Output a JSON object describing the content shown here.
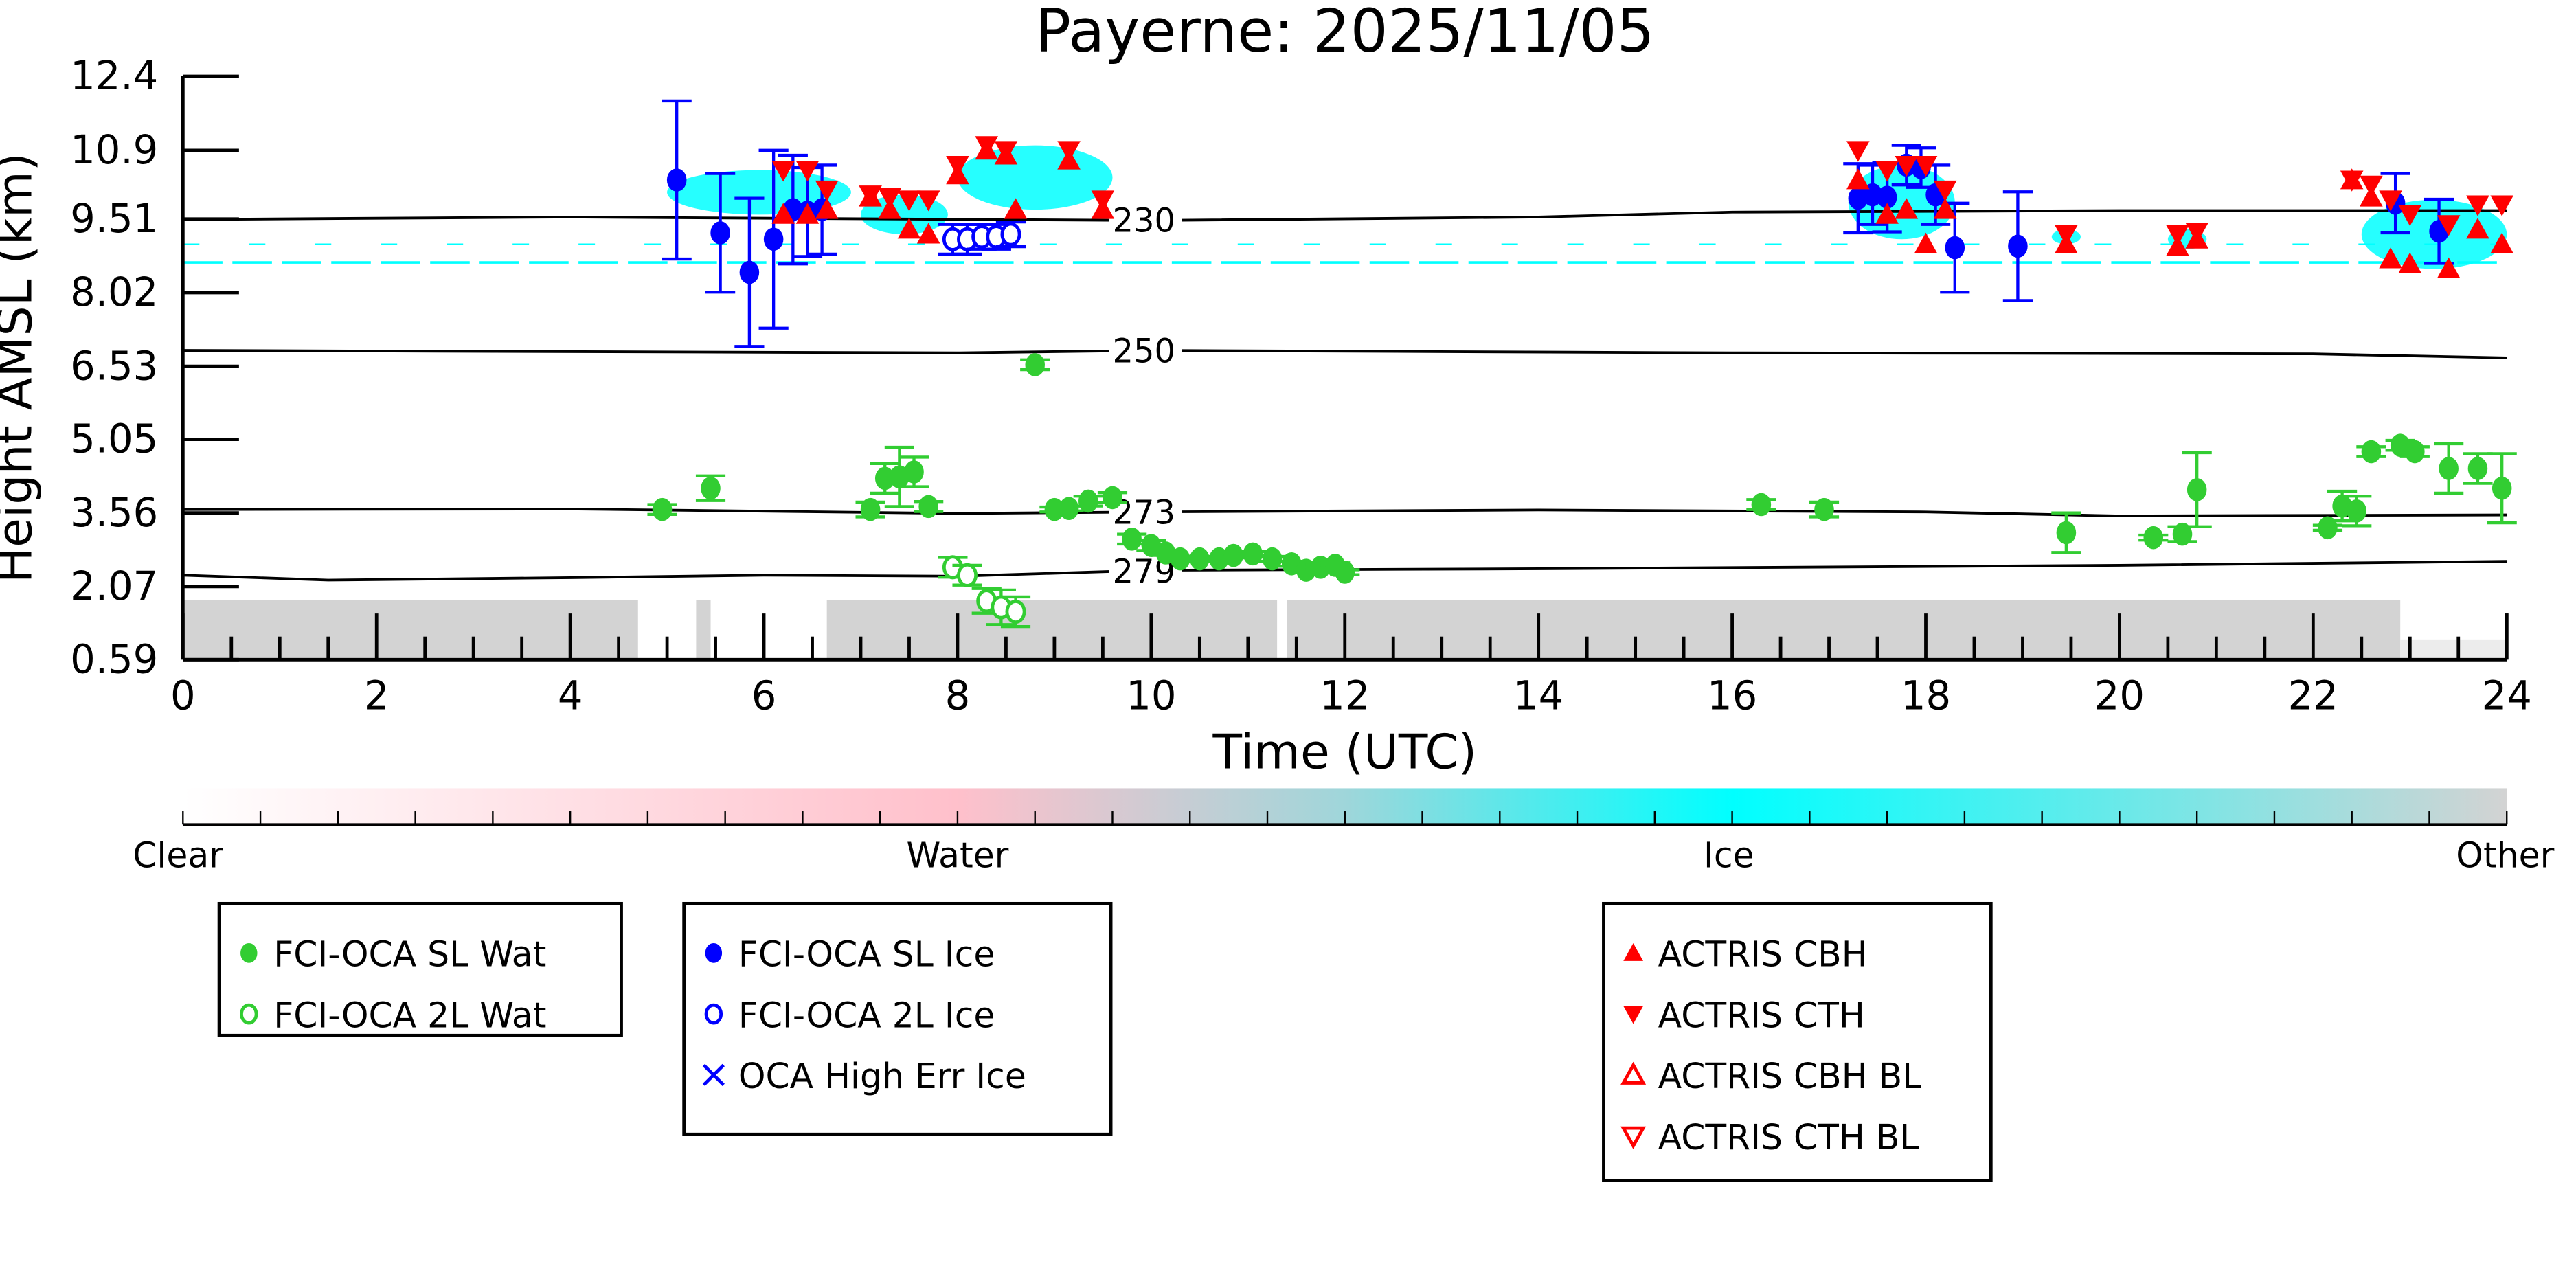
{
  "chart_data": {
    "type": "scatter",
    "title": "Payerne: 2025/11/05",
    "xlabel": "Time (UTC)",
    "ylabel": "Height AMSL (km)",
    "xlim": [
      0,
      24
    ],
    "ylim": [
      0.59,
      12.4
    ],
    "xticks": [
      0,
      2,
      4,
      6,
      8,
      10,
      12,
      14,
      16,
      18,
      20,
      22,
      24
    ],
    "yticks": [
      "0.59",
      "2.07",
      "3.56",
      "5.05",
      "6.53",
      "8.02",
      "9.51",
      "10.9",
      "12.4"
    ],
    "colorbar": {
      "labels": [
        "Clear",
        "Water",
        "Ice",
        "Other"
      ],
      "colors": [
        "#ffffff",
        "#ffc0cb",
        "#00ffff",
        "#d3d3d3"
      ]
    },
    "isotherms": [
      {
        "label": "230",
        "label_time": 9.6,
        "points": [
          [
            0,
            9.5
          ],
          [
            4,
            9.55
          ],
          [
            10,
            9.48
          ],
          [
            14,
            9.55
          ],
          [
            16,
            9.65
          ],
          [
            20,
            9.68
          ],
          [
            24,
            9.68
          ]
        ]
      },
      {
        "label": "250",
        "label_time": 9.6,
        "points": [
          [
            0,
            6.85
          ],
          [
            8,
            6.8
          ],
          [
            10,
            6.85
          ],
          [
            16,
            6.8
          ],
          [
            22,
            6.78
          ],
          [
            24,
            6.7
          ]
        ]
      },
      {
        "label": "273",
        "label_time": 9.6,
        "points": [
          [
            0,
            3.63
          ],
          [
            4,
            3.64
          ],
          [
            8,
            3.55
          ],
          [
            10,
            3.58
          ],
          [
            14,
            3.62
          ],
          [
            18,
            3.58
          ],
          [
            20,
            3.5
          ],
          [
            24,
            3.52
          ]
        ]
      },
      {
        "label": "279",
        "label_time": 9.6,
        "points": [
          [
            0,
            2.3
          ],
          [
            1.5,
            2.2
          ],
          [
            4,
            2.25
          ],
          [
            6,
            2.3
          ],
          [
            8,
            2.28
          ],
          [
            10,
            2.4
          ],
          [
            14,
            2.43
          ],
          [
            20,
            2.5
          ],
          [
            24,
            2.58
          ]
        ]
      }
    ],
    "series": [
      {
        "name": "FCI-OCA SL Wat",
        "marker": "filled-circle",
        "color": "#32cd32",
        "points": [
          [
            4.95,
            3.63,
            0.1
          ],
          [
            5.45,
            4.06,
            0.25
          ],
          [
            7.1,
            3.63,
            0.15
          ],
          [
            7.25,
            4.26,
            0.3
          ],
          [
            7.4,
            4.29,
            0.6
          ],
          [
            7.55,
            4.39,
            0.3
          ],
          [
            7.7,
            3.69,
            0.1
          ],
          [
            8.8,
            6.56,
            0.1
          ],
          [
            9.0,
            3.63,
            0.05
          ],
          [
            9.15,
            3.65,
            0.05
          ],
          [
            9.35,
            3.8,
            0.1
          ],
          [
            9.6,
            3.87,
            0.1
          ],
          [
            9.8,
            3.03,
            0.1
          ],
          [
            10.0,
            2.9,
            0.1
          ],
          [
            10.15,
            2.75,
            0.05
          ],
          [
            10.3,
            2.63,
            0.05
          ],
          [
            10.5,
            2.63,
            0.05
          ],
          [
            10.7,
            2.63,
            0.05
          ],
          [
            10.85,
            2.7,
            0.05
          ],
          [
            11.05,
            2.73,
            0.05
          ],
          [
            11.25,
            2.63,
            0.05
          ],
          [
            11.45,
            2.53,
            0.05
          ],
          [
            11.6,
            2.4,
            0.05
          ],
          [
            11.75,
            2.46,
            0.05
          ],
          [
            11.9,
            2.5,
            0.05
          ],
          [
            12.0,
            2.36,
            0.05
          ],
          [
            16.3,
            3.73,
            0.1
          ],
          [
            16.95,
            3.63,
            0.15
          ],
          [
            19.45,
            3.16,
            0.4
          ],
          [
            20.35,
            3.06,
            0.05
          ],
          [
            20.65,
            3.13,
            0.15
          ],
          [
            20.8,
            4.03,
            0.75
          ],
          [
            22.15,
            3.26,
            0.05
          ],
          [
            22.3,
            3.7,
            0.3
          ],
          [
            22.45,
            3.6,
            0.3
          ],
          [
            22.6,
            4.8,
            0.1
          ],
          [
            22.9,
            4.93,
            0.1
          ],
          [
            23.05,
            4.8,
            0.1
          ],
          [
            23.4,
            4.46,
            0.5
          ],
          [
            23.7,
            4.46,
            0.3
          ],
          [
            23.95,
            4.06,
            0.7
          ]
        ]
      },
      {
        "name": "FCI-OCA 2L Wat",
        "marker": "open-circle",
        "color": "#32cd32",
        "points": [
          [
            7.95,
            2.46,
            0.2
          ],
          [
            8.1,
            2.3,
            0.2
          ],
          [
            8.3,
            1.78,
            0.25
          ],
          [
            8.45,
            1.65,
            0.35
          ],
          [
            8.6,
            1.56,
            0.3
          ]
        ]
      },
      {
        "name": "FCI-OCA SL Ice",
        "marker": "filled-circle",
        "color": "#0000ff",
        "points": [
          [
            5.1,
            10.3,
            1.6
          ],
          [
            5.55,
            9.23,
            1.2
          ],
          [
            5.85,
            8.43,
            1.5
          ],
          [
            6.1,
            9.1,
            1.8
          ],
          [
            6.3,
            9.7,
            1.1
          ],
          [
            6.45,
            9.65,
            0.9
          ],
          [
            6.6,
            9.7,
            0.9
          ],
          [
            17.3,
            9.93,
            0.7
          ],
          [
            17.45,
            10.0,
            0.6
          ],
          [
            17.6,
            9.95,
            0.7
          ],
          [
            17.8,
            10.6,
            0.4
          ],
          [
            17.95,
            10.55,
            0.4
          ],
          [
            18.1,
            10.0,
            0.6
          ],
          [
            18.3,
            8.93,
            0.9
          ],
          [
            18.95,
            8.96,
            1.1
          ],
          [
            22.85,
            9.83,
            0.6
          ],
          [
            23.3,
            9.26,
            0.65
          ]
        ]
      },
      {
        "name": "FCI-OCA 2L Ice",
        "marker": "open-circle",
        "color": "#0000ff",
        "points": [
          [
            7.95,
            9.1,
            0.3
          ],
          [
            8.1,
            9.1,
            0.3
          ],
          [
            8.25,
            9.15,
            0.25
          ],
          [
            8.4,
            9.15,
            0.25
          ],
          [
            8.55,
            9.2,
            0.25
          ]
        ]
      },
      {
        "name": "OCA High Err Ice",
        "marker": "x",
        "color": "#0000ff",
        "points": []
      },
      {
        "name": "ACTRIS CBH",
        "marker": "triangle-up",
        "color": "#ff0000",
        "points": [
          [
            6.2,
            9.6
          ],
          [
            6.45,
            9.6
          ],
          [
            6.65,
            9.7
          ],
          [
            7.1,
            9.95
          ],
          [
            7.3,
            9.7
          ],
          [
            7.5,
            9.3
          ],
          [
            7.7,
            9.2
          ],
          [
            8.0,
            10.4
          ],
          [
            8.3,
            10.9
          ],
          [
            8.5,
            10.8
          ],
          [
            8.6,
            9.7
          ],
          [
            9.15,
            10.7
          ],
          [
            9.5,
            9.7
          ],
          [
            17.3,
            10.3
          ],
          [
            17.6,
            9.6
          ],
          [
            17.8,
            9.7
          ],
          [
            18.0,
            9.0
          ],
          [
            18.2,
            9.7
          ],
          [
            19.45,
            9.0
          ],
          [
            20.6,
            8.95
          ],
          [
            20.8,
            9.1
          ],
          [
            22.4,
            10.3
          ],
          [
            22.6,
            9.95
          ],
          [
            22.8,
            8.7
          ],
          [
            23.0,
            8.6
          ],
          [
            23.4,
            8.5
          ],
          [
            23.7,
            9.3
          ],
          [
            23.95,
            9.0
          ]
        ]
      },
      {
        "name": "ACTRIS CTH",
        "marker": "triangle-down",
        "color": "#ff0000",
        "points": [
          [
            6.2,
            10.5
          ],
          [
            6.45,
            10.5
          ],
          [
            6.65,
            10.1
          ],
          [
            7.1,
            10.0
          ],
          [
            7.3,
            9.95
          ],
          [
            7.5,
            9.9
          ],
          [
            7.7,
            9.9
          ],
          [
            8.0,
            10.6
          ],
          [
            8.3,
            11.0
          ],
          [
            8.5,
            10.9
          ],
          [
            9.15,
            10.9
          ],
          [
            9.5,
            9.9
          ],
          [
            17.3,
            10.9
          ],
          [
            17.6,
            10.5
          ],
          [
            17.8,
            10.6
          ],
          [
            18.0,
            10.6
          ],
          [
            18.2,
            10.1
          ],
          [
            19.45,
            9.2
          ],
          [
            20.6,
            9.2
          ],
          [
            20.8,
            9.25
          ],
          [
            22.4,
            10.3
          ],
          [
            22.6,
            10.2
          ],
          [
            22.8,
            9.9
          ],
          [
            23.0,
            9.6
          ],
          [
            23.4,
            9.4
          ],
          [
            23.7,
            9.8
          ],
          [
            23.95,
            9.8
          ]
        ]
      },
      {
        "name": "ACTRIS CBH BL",
        "marker": "open-triangle-up",
        "color": "#ff0000",
        "points": []
      },
      {
        "name": "ACTRIS CTH BL",
        "marker": "open-triangle-down",
        "color": "#ff0000",
        "points": []
      }
    ],
    "legend_groups": [
      [
        "FCI-OCA SL Wat",
        "FCI-OCA 2L Wat"
      ],
      [
        "FCI-OCA SL Ice",
        "FCI-OCA 2L Ice",
        "OCA High Err Ice"
      ],
      [
        "ACTRIS CBH",
        "ACTRIS CTH",
        "ACTRIS CBH BL",
        "ACTRIS CTH BL"
      ]
    ],
    "legend_placement": "bottom",
    "grid": false
  }
}
